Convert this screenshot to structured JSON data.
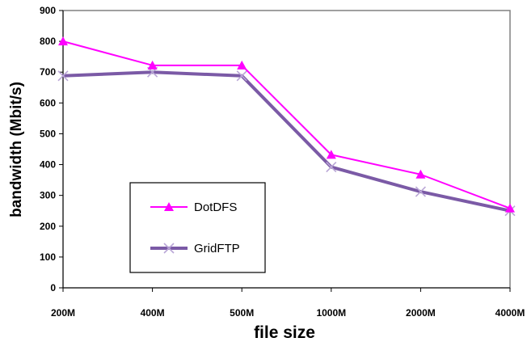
{
  "chart_data": {
    "type": "line",
    "categories": [
      "200M",
      "400M",
      "500M",
      "1000M",
      "2000M",
      "4000M"
    ],
    "series": [
      {
        "name": "DotDFS",
        "values": [
          800,
          722,
          722,
          432,
          368,
          258
        ],
        "color": "#ff00ff",
        "marker": "triangle"
      },
      {
        "name": "GridFTP",
        "values": [
          688,
          700,
          688,
          392,
          312,
          250
        ],
        "color": "#7b5aa6",
        "marker": "x"
      }
    ],
    "xlabel": "file size",
    "ylabel": "bandwidth (Mbit/s)",
    "ylim": [
      0,
      900
    ],
    "yticks": [
      0,
      100,
      200,
      300,
      400,
      500,
      600,
      700,
      800,
      900
    ],
    "grid": false,
    "legend_position": "lower-left"
  }
}
